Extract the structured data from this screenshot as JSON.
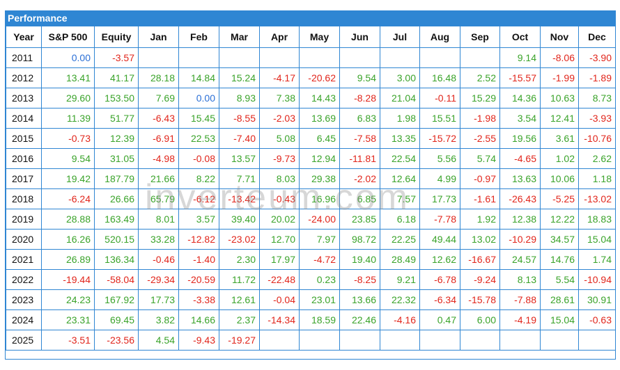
{
  "title": "Performance",
  "watermark": "inverteum.com",
  "colors": {
    "header": "#2f86d3",
    "positive": "#3aa32a",
    "negative": "#e1251b",
    "zero": "#2a6fd6"
  },
  "columns": [
    "Year",
    "S&P 500",
    "Equity",
    "Jan",
    "Feb",
    "Mar",
    "Apr",
    "May",
    "Jun",
    "Jul",
    "Aug",
    "Sep",
    "Oct",
    "Nov",
    "Dec"
  ],
  "rows": [
    [
      "2011",
      "0.00",
      "-3.57",
      "",
      "",
      "",
      "",
      "",
      "",
      "",
      "",
      "",
      "9.14",
      "-8.06",
      "-3.90"
    ],
    [
      "2012",
      "13.41",
      "41.17",
      "28.18",
      "14.84",
      "15.24",
      "-4.17",
      "-20.62",
      "9.54",
      "3.00",
      "16.48",
      "2.52",
      "-15.57",
      "-1.99",
      "-1.89"
    ],
    [
      "2013",
      "29.60",
      "153.50",
      "7.69",
      "0.00",
      "8.93",
      "7.38",
      "14.43",
      "-8.28",
      "21.04",
      "-0.11",
      "15.29",
      "14.36",
      "10.63",
      "8.73"
    ],
    [
      "2014",
      "11.39",
      "51.77",
      "-6.43",
      "15.45",
      "-8.55",
      "-2.03",
      "13.69",
      "6.83",
      "1.98",
      "15.51",
      "-1.98",
      "3.54",
      "12.41",
      "-3.93"
    ],
    [
      "2015",
      "-0.73",
      "12.39",
      "-6.91",
      "22.53",
      "-7.40",
      "5.08",
      "6.45",
      "-7.58",
      "13.35",
      "-15.72",
      "-2.55",
      "19.56",
      "3.61",
      "-10.76"
    ],
    [
      "2016",
      "9.54",
      "31.05",
      "-4.98",
      "-0.08",
      "13.57",
      "-9.73",
      "12.94",
      "-11.81",
      "22.54",
      "5.56",
      "5.74",
      "-4.65",
      "1.02",
      "2.62"
    ],
    [
      "2017",
      "19.42",
      "187.79",
      "21.66",
      "8.22",
      "7.71",
      "8.03",
      "29.38",
      "-2.02",
      "12.64",
      "4.99",
      "-0.97",
      "13.63",
      "10.06",
      "1.18"
    ],
    [
      "2018",
      "-6.24",
      "26.66",
      "65.79",
      "-6.12",
      "-13.42",
      "-0.43",
      "16.96",
      "6.85",
      "7.57",
      "17.73",
      "-1.61",
      "-26.43",
      "-5.25",
      "-13.02"
    ],
    [
      "2019",
      "28.88",
      "163.49",
      "8.01",
      "3.57",
      "39.40",
      "20.02",
      "-24.00",
      "23.85",
      "6.18",
      "-7.78",
      "1.92",
      "12.38",
      "12.22",
      "18.83"
    ],
    [
      "2020",
      "16.26",
      "520.15",
      "33.28",
      "-12.82",
      "-23.02",
      "12.70",
      "7.97",
      "98.72",
      "22.25",
      "49.44",
      "13.02",
      "-10.29",
      "34.57",
      "15.04"
    ],
    [
      "2021",
      "26.89",
      "136.34",
      "-0.46",
      "-1.40",
      "2.30",
      "17.97",
      "-4.72",
      "19.40",
      "28.49",
      "12.62",
      "-16.67",
      "24.57",
      "14.76",
      "1.74"
    ],
    [
      "2022",
      "-19.44",
      "-58.04",
      "-29.34",
      "-20.59",
      "11.72",
      "-22.48",
      "0.23",
      "-8.25",
      "9.21",
      "-6.78",
      "-9.24",
      "8.13",
      "5.54",
      "-10.94"
    ],
    [
      "2023",
      "24.23",
      "167.92",
      "17.73",
      "-3.38",
      "12.61",
      "-0.04",
      "23.01",
      "13.66",
      "22.32",
      "-6.34",
      "-15.78",
      "-7.88",
      "28.61",
      "30.91"
    ],
    [
      "2024",
      "23.31",
      "69.45",
      "3.82",
      "14.66",
      "2.37",
      "-14.34",
      "18.59",
      "22.46",
      "-4.16",
      "0.47",
      "6.00",
      "-4.19",
      "15.04",
      "-0.63"
    ],
    [
      "2025",
      "-3.51",
      "-23.56",
      "4.54",
      "-9.43",
      "-19.27",
      "",
      "",
      "",
      "",
      "",
      "",
      "",
      "",
      ""
    ]
  ]
}
